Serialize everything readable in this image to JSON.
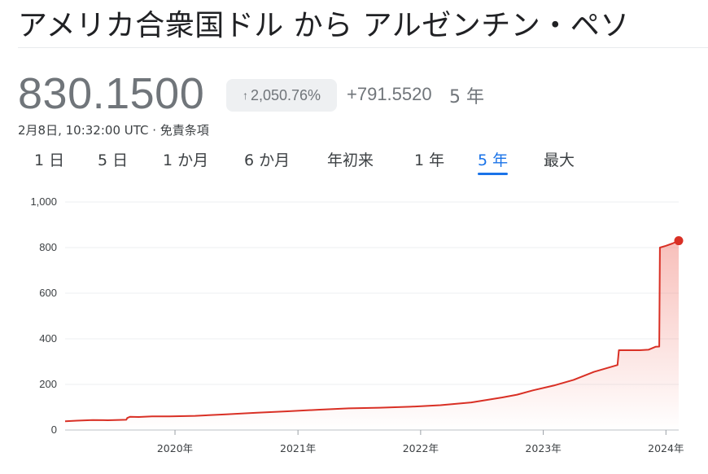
{
  "header": {
    "title": "アメリカ合衆国ドル から アルゼンチン・ペソ"
  },
  "quote": {
    "price": "830.1500",
    "change_arrow": "↑",
    "change_percent": "2,050.76%",
    "change_abs": "+791.5520",
    "period_label": "5 年",
    "timestamp": "2月8日, 10:32:00 UTC · 免責条項"
  },
  "tabs": [
    {
      "label": "1 日",
      "active": false
    },
    {
      "label": "5 日",
      "active": false
    },
    {
      "label": "1 か月",
      "active": false
    },
    {
      "label": "6 か月",
      "active": false
    },
    {
      "label": "年初来",
      "active": false
    },
    {
      "label": "1 年",
      "active": false
    },
    {
      "label": "5 年",
      "active": true
    },
    {
      "label": "最大",
      "active": false
    }
  ],
  "colors": {
    "line": "#d93025",
    "fill_top": "#f28b82",
    "active_tab": "#1a73e8",
    "muted_text": "#70757a"
  },
  "chart_data": {
    "type": "area",
    "ylim": [
      0,
      1000
    ],
    "yticks": [
      0,
      200,
      400,
      600,
      800,
      1000
    ],
    "ytick_labels": [
      "0",
      "200",
      "400",
      "600",
      "800",
      "1,000"
    ],
    "xlim": [
      "2019-02-08",
      "2024-02-08"
    ],
    "xticks": [
      "2020-01-01",
      "2021-01-01",
      "2022-01-01",
      "2023-01-01",
      "2024-01-01"
    ],
    "xtick_labels": [
      "2020年",
      "2021年",
      "2022年",
      "2023年",
      "2024年"
    ],
    "grid": true,
    "points": [
      [
        "2019-02-08",
        38.6
      ],
      [
        "2019-03-15",
        41
      ],
      [
        "2019-05-01",
        44
      ],
      [
        "2019-06-15",
        43
      ],
      [
        "2019-08-09",
        45
      ],
      [
        "2019-08-12",
        53
      ],
      [
        "2019-08-20",
        58
      ],
      [
        "2019-09-15",
        57
      ],
      [
        "2019-10-25",
        60
      ],
      [
        "2019-12-15",
        60
      ],
      [
        "2020-03-01",
        62
      ],
      [
        "2020-06-01",
        69
      ],
      [
        "2020-09-01",
        76
      ],
      [
        "2020-12-01",
        82
      ],
      [
        "2021-03-01",
        89
      ],
      [
        "2021-06-01",
        95
      ],
      [
        "2021-09-01",
        98
      ],
      [
        "2021-12-01",
        102
      ],
      [
        "2022-03-01",
        109
      ],
      [
        "2022-06-01",
        121
      ],
      [
        "2022-09-01",
        143
      ],
      [
        "2022-10-15",
        155
      ],
      [
        "2022-12-01",
        174
      ],
      [
        "2023-02-01",
        195
      ],
      [
        "2023-04-01",
        220
      ],
      [
        "2023-06-01",
        255
      ],
      [
        "2023-08-10",
        285
      ],
      [
        "2023-08-14",
        350
      ],
      [
        "2023-09-01",
        350
      ],
      [
        "2023-10-15",
        350
      ],
      [
        "2023-11-10",
        352
      ],
      [
        "2023-12-01",
        365
      ],
      [
        "2023-12-12",
        366
      ],
      [
        "2023-12-14",
        800
      ],
      [
        "2024-01-01",
        808
      ],
      [
        "2024-01-20",
        818
      ],
      [
        "2024-02-08",
        830.15
      ]
    ]
  }
}
